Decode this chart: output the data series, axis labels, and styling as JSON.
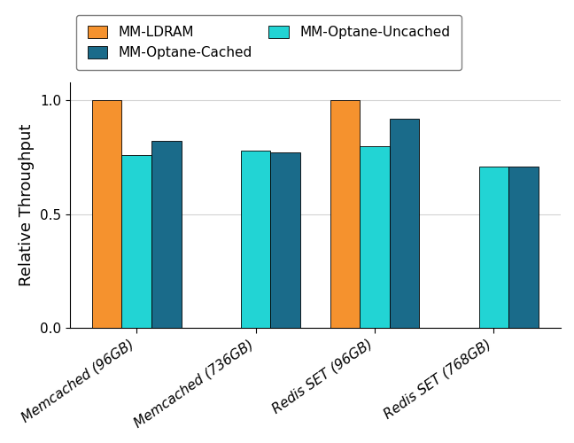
{
  "categories": [
    "Memcached (96GB)",
    "Memcached (736GB)",
    "Redis SET (96GB)",
    "Redis SET (768GB)"
  ],
  "series": {
    "MM-LDRAM": [
      1.0,
      0.001,
      1.0,
      0.001
    ],
    "MM-Optane-Uncached": [
      0.76,
      0.78,
      0.8,
      0.71
    ],
    "MM-Optane-Cached": [
      0.82,
      0.77,
      0.92,
      0.71
    ]
  },
  "colors": {
    "MM-LDRAM": "#f5922e",
    "MM-Optane-Uncached": "#22d4d4",
    "MM-Optane-Cached": "#1a6b8a"
  },
  "bar_order": [
    "MM-LDRAM",
    "MM-Optane-Uncached",
    "MM-Optane-Cached"
  ],
  "legend_row1": [
    "MM-LDRAM",
    "MM-Optane-Cached"
  ],
  "legend_row2": [
    "MM-Optane-Uncached"
  ],
  "ylabel": "Relative Throughput",
  "ylim": [
    0.0,
    1.08
  ],
  "yticks": [
    0.0,
    0.5,
    1.0
  ],
  "bar_width": 0.25,
  "figsize": [
    6.48,
    5.0
  ],
  "dpi": 100
}
